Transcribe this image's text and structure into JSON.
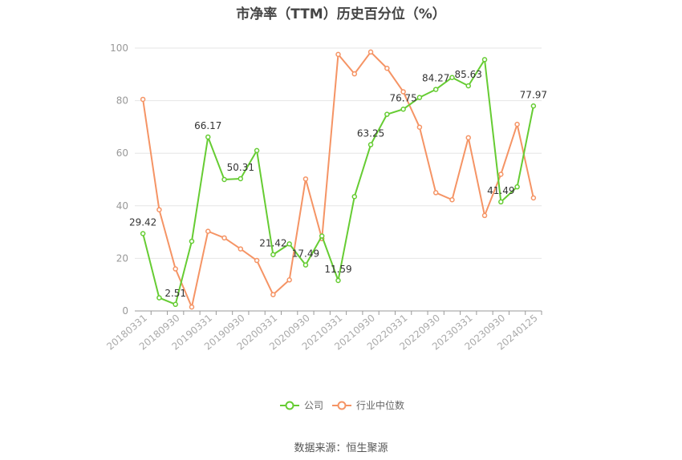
{
  "chart_data": {
    "type": "line",
    "title": "市净率（TTM）历史百分位（%）",
    "ylim": [
      0,
      100
    ],
    "yticks": [
      0,
      20,
      40,
      60,
      80,
      100
    ],
    "grid": true,
    "legend_position": "bottom",
    "x": [
      "20180331",
      "20180630",
      "20180930",
      "20181231",
      "20190331",
      "20190630",
      "20190930",
      "20191231",
      "20200331",
      "20200630",
      "20200930",
      "20201231",
      "20210331",
      "20210630",
      "20210930",
      "20211231",
      "20220331",
      "20220630",
      "20220930",
      "20221231",
      "20230331",
      "20230630",
      "20230930",
      "20231231",
      "20240125"
    ],
    "x_tick_labels": [
      "20180331",
      "20180930",
      "20190331",
      "20190930",
      "20200331",
      "20200930",
      "20210331",
      "20210930",
      "20220331",
      "20220930",
      "20230331",
      "20230930",
      "20240125"
    ],
    "series": [
      {
        "name": "公司",
        "color": "#66cc33",
        "values": [
          29.42,
          5,
          2.51,
          26.5,
          66.17,
          50,
          50.31,
          61,
          21.42,
          25.5,
          17.49,
          28.5,
          11.59,
          43.5,
          63.25,
          74.8,
          76.75,
          81.2,
          84.27,
          88.8,
          85.63,
          95.6,
          41.49,
          47.2,
          77.97
        ],
        "labels": {
          "0": "29.42",
          "2": "2.51",
          "4": "66.17",
          "6": "50.31",
          "8": "21.42",
          "10": "17.49",
          "12": "11.59",
          "14": "63.25",
          "16": "76.75",
          "18": "84.27",
          "20": "85.63",
          "22": "41.49",
          "24": "77.97"
        }
      },
      {
        "name": "行业中位数",
        "color": "#f59465",
        "values": [
          80.5,
          38.5,
          16,
          1.5,
          30.3,
          27.8,
          23.6,
          19.2,
          6.2,
          11.8,
          50.2,
          27.5,
          97.6,
          90.2,
          98.5,
          92.3,
          83.4,
          69.9,
          45,
          42.3,
          65.9,
          36.3,
          52,
          71,
          43
        ]
      }
    ]
  },
  "source_text": "数据来源：恒生聚源"
}
